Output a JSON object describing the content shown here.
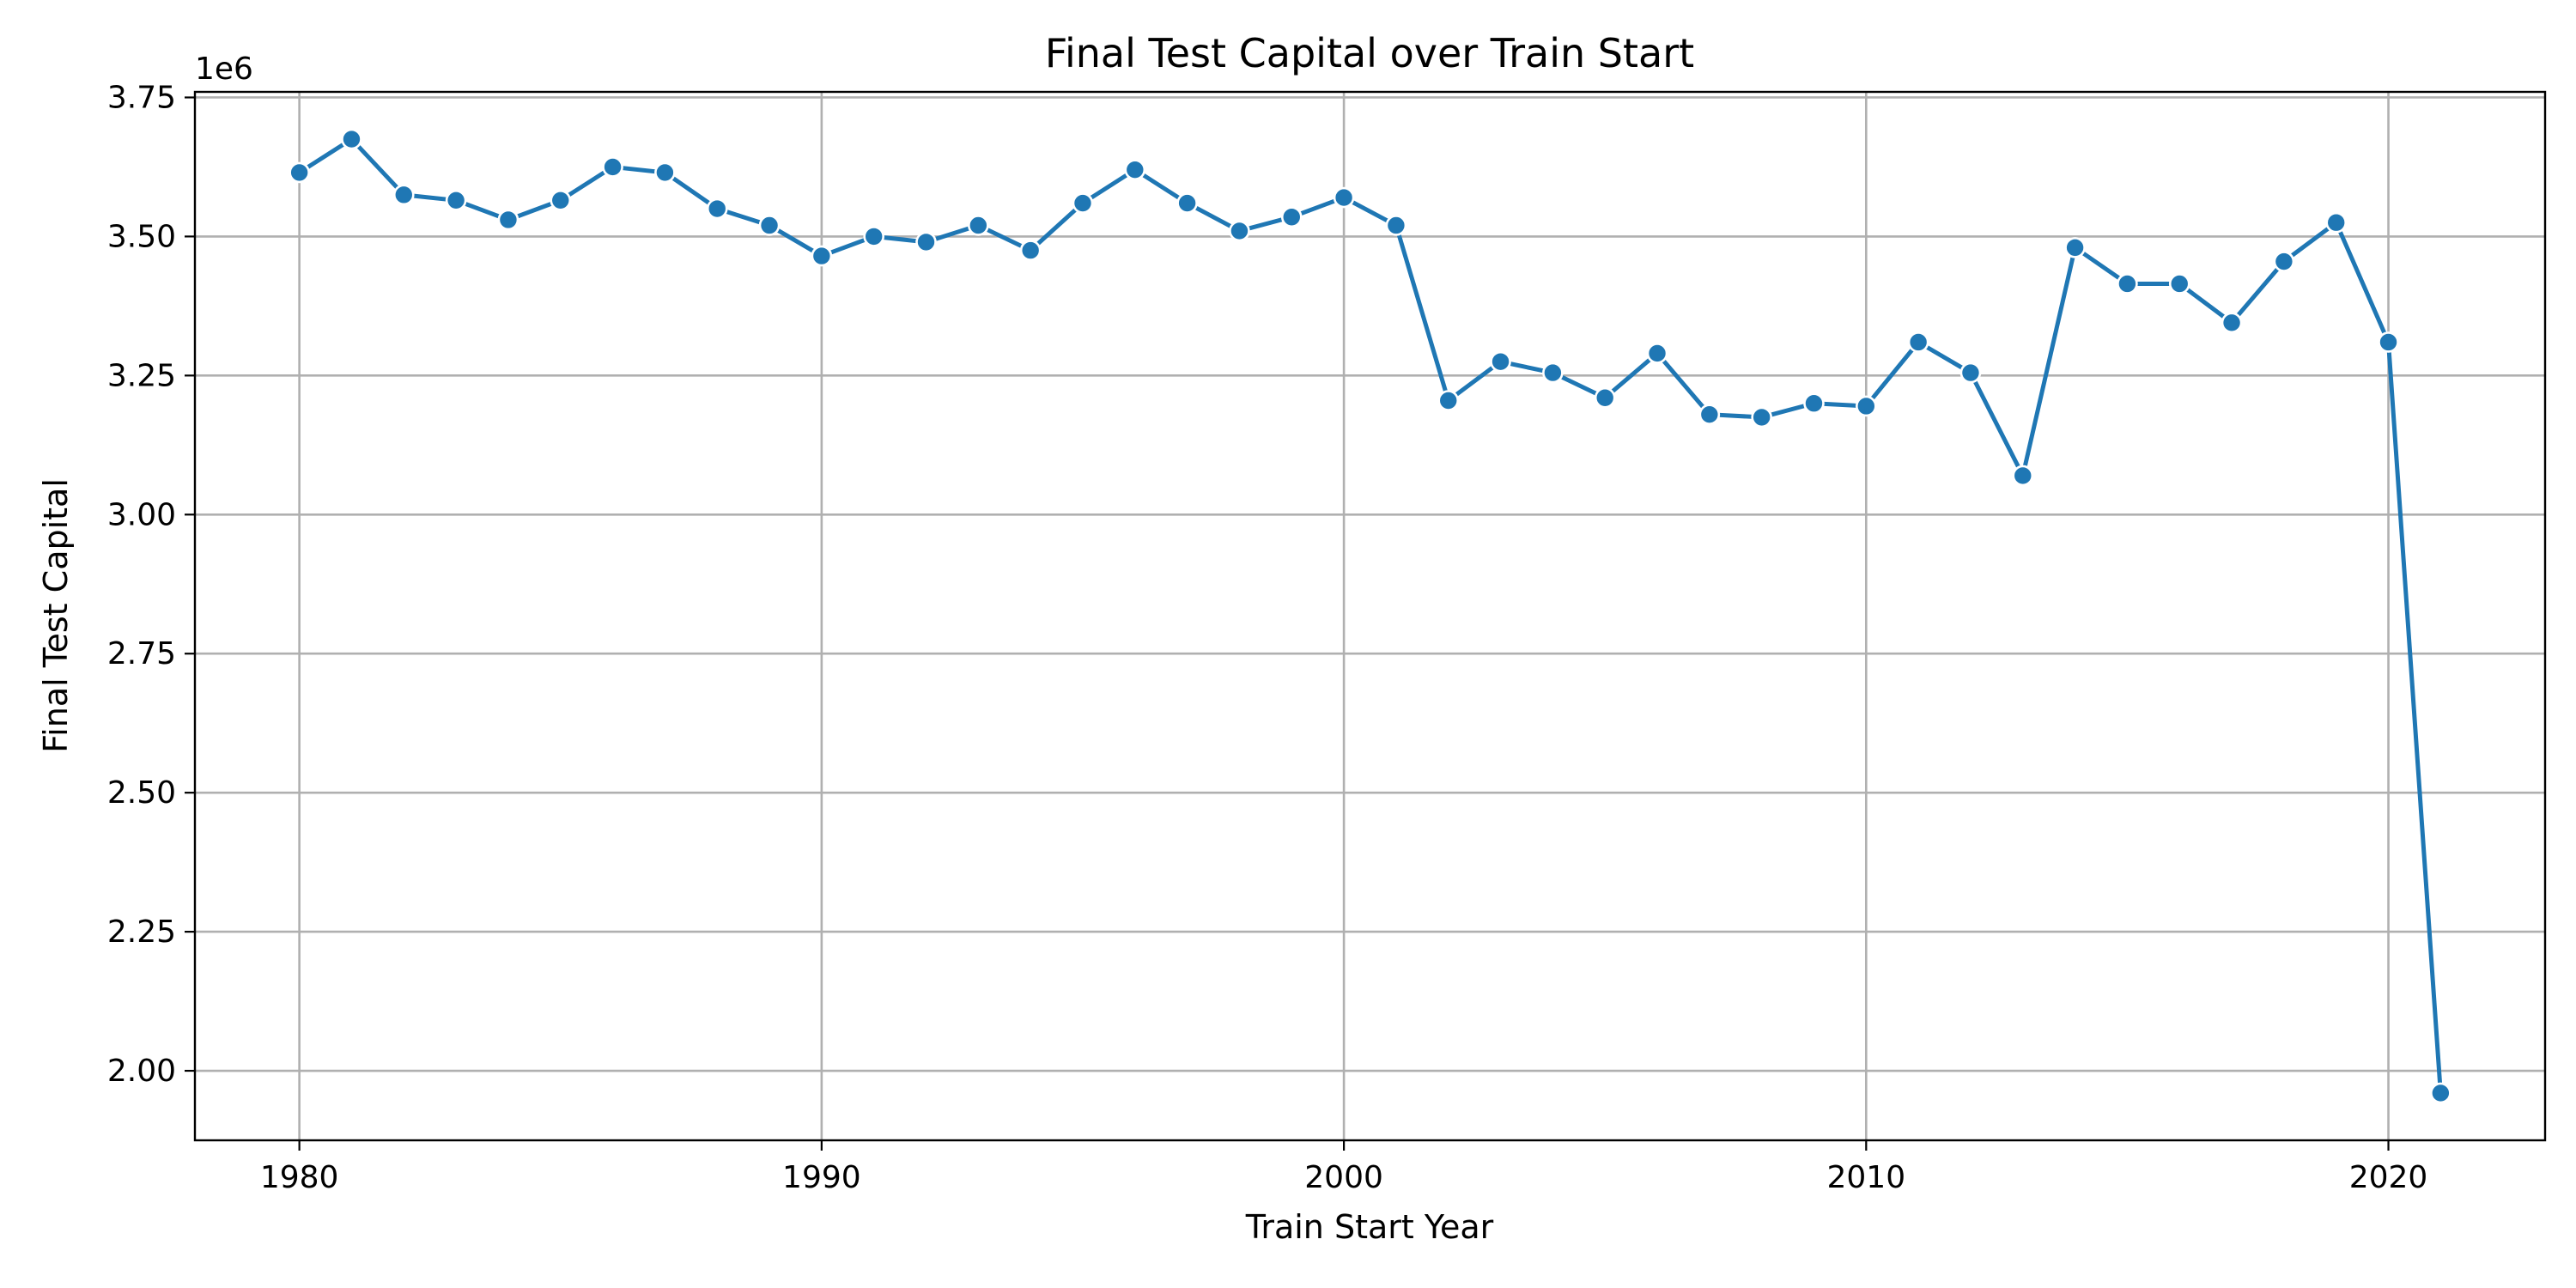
{
  "chart_data": {
    "type": "line",
    "title": "Final Test Capital over Train Start",
    "xlabel": "Train Start Year",
    "ylabel": "Final Test Capital",
    "y_offset_label": "1e6",
    "xlim": [
      1978,
      2023
    ],
    "ylim": [
      1875000,
      3760000
    ],
    "x_ticks": [
      1980,
      1990,
      2000,
      2010,
      2020
    ],
    "x_tick_labels": [
      "1980",
      "1990",
      "2000",
      "2010",
      "2020"
    ],
    "y_ticks": [
      2000000,
      2250000,
      2500000,
      2750000,
      3000000,
      3250000,
      3500000,
      3750000
    ],
    "y_tick_labels": [
      "2.00",
      "2.25",
      "2.50",
      "2.75",
      "3.00",
      "3.25",
      "3.50",
      "3.75"
    ],
    "grid": true,
    "series": [
      {
        "color": "#1f77b4",
        "marker": "circle",
        "x": [
          1980,
          1981,
          1982,
          1983,
          1984,
          1985,
          1986,
          1987,
          1988,
          1989,
          1990,
          1991,
          1992,
          1993,
          1994,
          1995,
          1996,
          1997,
          1998,
          1999,
          2000,
          2001,
          2002,
          2003,
          2004,
          2005,
          2006,
          2007,
          2008,
          2009,
          2010,
          2011,
          2012,
          2013,
          2014,
          2015,
          2016,
          2017,
          2018,
          2019,
          2020,
          2021
        ],
        "y": [
          3615000,
          3675000,
          3575000,
          3565000,
          3530000,
          3565000,
          3625000,
          3615000,
          3550000,
          3520000,
          3465000,
          3500000,
          3490000,
          3520000,
          3475000,
          3560000,
          3620000,
          3560000,
          3510000,
          3535000,
          3570000,
          3520000,
          3205000,
          3275000,
          3255000,
          3210000,
          3290000,
          3180000,
          3175000,
          3200000,
          3195000,
          3310000,
          3255000,
          3070000,
          3480000,
          3415000,
          3415000,
          3345000,
          3455000,
          3525000,
          3310000,
          1960000
        ]
      }
    ]
  }
}
